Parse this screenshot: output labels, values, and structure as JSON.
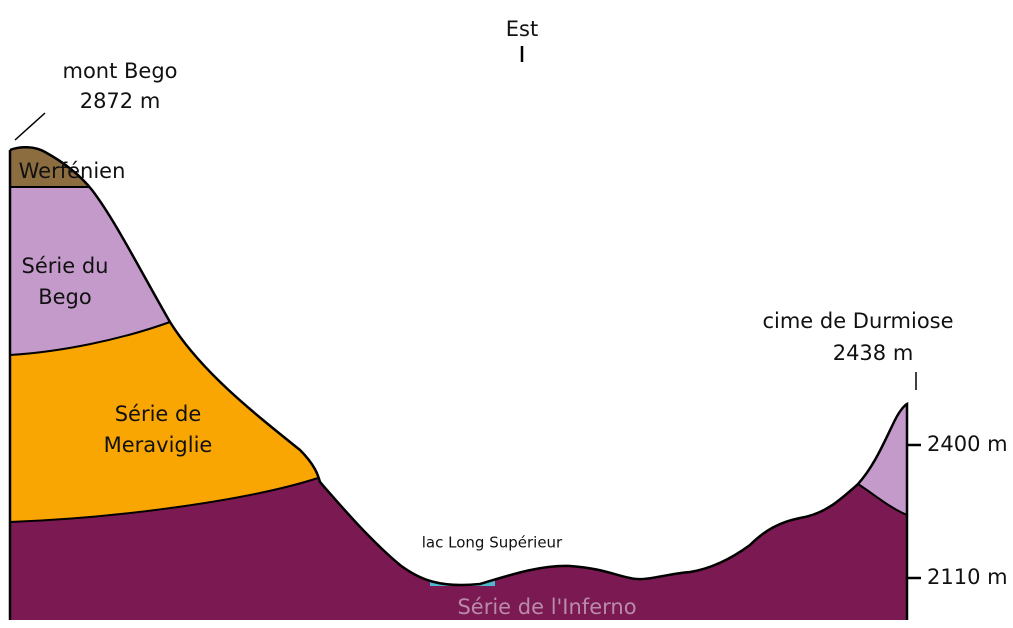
{
  "header": {
    "title": "Est"
  },
  "peaks": [
    {
      "name": "mont Bego",
      "elevation": "2872 m"
    },
    {
      "name": "cime de Durmiose",
      "elevation": "2438 m"
    }
  ],
  "layers": [
    {
      "lines": [
        "Werfénien"
      ]
    },
    {
      "lines": [
        "Série du",
        "Bego"
      ]
    },
    {
      "lines": [
        "Série de",
        "Meraviglie"
      ]
    },
    {
      "lines": [
        "Série de l'Inferno"
      ]
    }
  ],
  "lake": "lac Long Supérieur",
  "scale": [
    "2400 m",
    "2110 m"
  ]
}
